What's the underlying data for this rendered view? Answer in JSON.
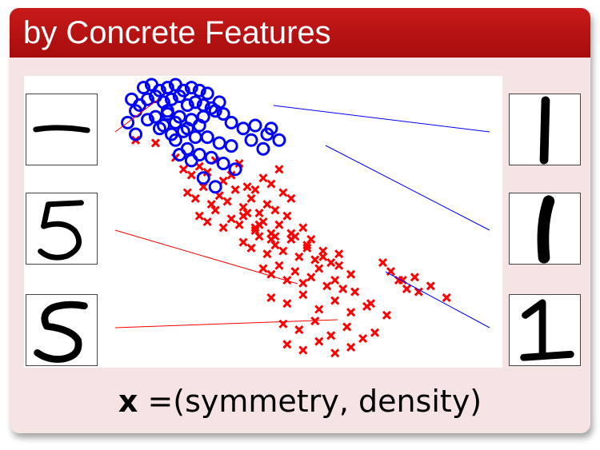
{
  "block": {
    "title": "by Concrete Features",
    "formula_var": "x",
    "formula_eq": " =",
    "formula_rest": "(symmetry, density)"
  },
  "colors": {
    "title_bg": "#b50f0f",
    "block_bg": "#f6e3e4",
    "digit1_points": "#0000ff",
    "digit5_points": "#ff0000"
  },
  "thumbnails": {
    "left": [
      "digit-1-horizontal",
      "digit-5",
      "digit-5-alt"
    ],
    "right": [
      "digit-1-vertical",
      "digit-1-thick",
      "digit-1-serif"
    ]
  },
  "chart_data": {
    "type": "scatter",
    "series": [
      {
        "marker": "circle",
        "color": "#0000ff",
        "x": [
          0.3,
          0.32,
          0.34,
          0.36,
          0.38,
          0.4,
          0.42,
          0.44,
          0.46,
          0.31,
          0.33,
          0.35,
          0.37,
          0.39,
          0.41,
          0.43,
          0.45,
          0.47,
          0.29,
          0.28,
          0.48,
          0.5,
          0.49,
          0.27,
          0.33,
          0.36,
          0.39,
          0.42,
          0.45,
          0.35,
          0.38,
          0.41,
          0.44,
          0.37,
          0.4,
          0.43,
          0.52,
          0.55,
          0.58,
          0.61,
          0.64,
          0.62,
          0.46,
          0.49,
          0.52,
          0.31,
          0.34,
          0.28,
          0.26,
          0.38,
          0.41,
          0.44,
          0.47,
          0.5,
          0.53,
          0.45,
          0.48,
          0.57,
          0.6,
          0.39,
          0.42,
          0.36
        ],
        "y": [
          0.96,
          0.97,
          0.95,
          0.96,
          0.97,
          0.95,
          0.96,
          0.95,
          0.94,
          0.92,
          0.93,
          0.91,
          0.92,
          0.93,
          0.9,
          0.91,
          0.9,
          0.89,
          0.9,
          0.88,
          0.88,
          0.87,
          0.91,
          0.92,
          0.86,
          0.87,
          0.86,
          0.85,
          0.86,
          0.83,
          0.84,
          0.82,
          0.83,
          0.8,
          0.81,
          0.79,
          0.84,
          0.82,
          0.83,
          0.8,
          0.78,
          0.82,
          0.79,
          0.77,
          0.76,
          0.85,
          0.82,
          0.8,
          0.84,
          0.78,
          0.75,
          0.73,
          0.72,
          0.7,
          0.68,
          0.65,
          0.62,
          0.78,
          0.75,
          0.73,
          0.71,
          0.88
        ]
      },
      {
        "marker": "x",
        "color": "#ff0000",
        "x": [
          0.28,
          0.33,
          0.38,
          0.4,
          0.42,
          0.44,
          0.46,
          0.48,
          0.5,
          0.52,
          0.54,
          0.56,
          0.58,
          0.6,
          0.62,
          0.64,
          0.41,
          0.43,
          0.45,
          0.47,
          0.49,
          0.51,
          0.53,
          0.55,
          0.57,
          0.59,
          0.61,
          0.63,
          0.65,
          0.67,
          0.44,
          0.46,
          0.48,
          0.5,
          0.52,
          0.54,
          0.56,
          0.58,
          0.6,
          0.62,
          0.64,
          0.66,
          0.68,
          0.7,
          0.72,
          0.55,
          0.57,
          0.59,
          0.61,
          0.63,
          0.65,
          0.67,
          0.69,
          0.71,
          0.73,
          0.75,
          0.77,
          0.79,
          0.6,
          0.62,
          0.64,
          0.66,
          0.68,
          0.7,
          0.72,
          0.74,
          0.76,
          0.78,
          0.8,
          0.82,
          0.62,
          0.66,
          0.7,
          0.74,
          0.78,
          0.82,
          0.86,
          0.65,
          0.69,
          0.73,
          0.77,
          0.81,
          0.85,
          0.88,
          0.9,
          0.92,
          0.94,
          0.96,
          0.98,
          1.02,
          1.06,
          0.58,
          0.62,
          0.67,
          0.71,
          0.75,
          0.79,
          0.83,
          0.87,
          0.91,
          0.95,
          0.99,
          0.66,
          0.7,
          0.74,
          0.78,
          0.82,
          0.55,
          0.59,
          0.63
        ],
        "y": [
          0.78,
          0.77,
          0.72,
          0.68,
          0.66,
          0.69,
          0.67,
          0.71,
          0.64,
          0.66,
          0.7,
          0.62,
          0.61,
          0.65,
          0.63,
          0.68,
          0.6,
          0.58,
          0.62,
          0.56,
          0.59,
          0.57,
          0.61,
          0.55,
          0.58,
          0.53,
          0.56,
          0.54,
          0.6,
          0.58,
          0.52,
          0.5,
          0.54,
          0.48,
          0.51,
          0.49,
          0.53,
          0.47,
          0.5,
          0.46,
          0.49,
          0.52,
          0.45,
          0.48,
          0.44,
          0.43,
          0.41,
          0.45,
          0.39,
          0.42,
          0.4,
          0.44,
          0.38,
          0.41,
          0.37,
          0.4,
          0.36,
          0.39,
          0.34,
          0.32,
          0.35,
          0.3,
          0.33,
          0.29,
          0.31,
          0.34,
          0.28,
          0.3,
          0.27,
          0.32,
          0.24,
          0.22,
          0.25,
          0.2,
          0.23,
          0.19,
          0.21,
          0.15,
          0.13,
          0.16,
          0.11,
          0.14,
          0.1,
          0.12,
          0.36,
          0.33,
          0.3,
          0.27,
          0.31,
          0.28,
          0.24,
          0.48,
          0.44,
          0.46,
          0.42,
          0.38,
          0.35,
          0.26,
          0.22,
          0.18,
          0.3,
          0.26,
          0.08,
          0.06,
          0.09,
          0.05,
          0.07,
          0.52,
          0.49,
          0.45
        ]
      }
    ],
    "xlim": [
      0,
      1.2
    ],
    "ylim": [
      0,
      1
    ],
    "grid": false
  }
}
